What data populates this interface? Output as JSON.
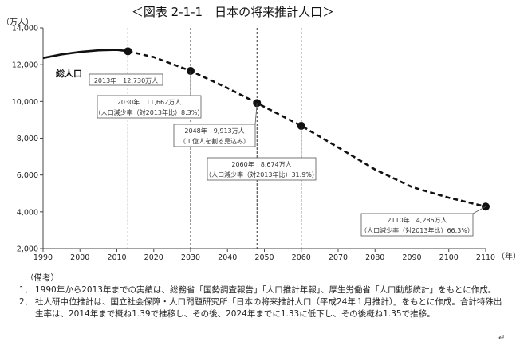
{
  "chart_data": {
    "type": "line",
    "title": "＜図表 2-1-1　日本の将来推計人口＞",
    "y_unit_label": "（万人）",
    "x_unit_label": "（年）",
    "xlim": [
      1990,
      2110
    ],
    "ylim": [
      2000,
      14000
    ],
    "x_ticks": [
      1990,
      2000,
      2010,
      2020,
      2030,
      2040,
      2050,
      2060,
      2070,
      2080,
      2090,
      2100,
      2110
    ],
    "y_ticks": [
      2000,
      4000,
      6000,
      8000,
      10000,
      12000,
      14000
    ],
    "y_tick_labels": [
      "2,000",
      "4,000",
      "6,000",
      "8,000",
      "10,000",
      "12,000",
      "14,000"
    ],
    "grid": false,
    "series": [
      {
        "name": "総人口",
        "segment": "実績",
        "style": "solid",
        "x": [
          1990,
          1995,
          2000,
          2005,
          2010,
          2013
        ],
        "y": [
          12361,
          12557,
          12693,
          12777,
          12806,
          12730
        ]
      },
      {
        "name": "総人口",
        "segment": "推計",
        "style": "dashed",
        "x": [
          2013,
          2020,
          2030,
          2040,
          2048,
          2050,
          2060,
          2070,
          2080,
          2090,
          2100,
          2110
        ],
        "y": [
          12730,
          12410,
          11662,
          10728,
          9913,
          9708,
          8674,
          7500,
          6300,
          5350,
          4770,
          4286
        ]
      }
    ],
    "markers": [
      {
        "x": 2013,
        "y": 12730,
        "vline": true
      },
      {
        "x": 2030,
        "y": 11662,
        "vline": true
      },
      {
        "x": 2048,
        "y": 9913,
        "vline": true
      },
      {
        "x": 2060,
        "y": 8674,
        "vline": true
      },
      {
        "x": 2110,
        "y": 4286,
        "vline": false
      }
    ],
    "annotations": [
      {
        "lines": [
          "2013年　12,730万人"
        ]
      },
      {
        "lines": [
          "2030年　11,662万人",
          "（人口減少率（対2013年比）8.3%）"
        ]
      },
      {
        "lines": [
          "2048年　9,913万人",
          "（１億人を割る見込み）"
        ]
      },
      {
        "lines": [
          "2060年　8,674万人",
          "（人口減少率（対2013年比）31.9%）"
        ]
      },
      {
        "lines": [
          "2110年　4,286万人",
          "（人口減少率（対2013年比）66.3%）"
        ]
      }
    ],
    "series_label": "総人口"
  },
  "notes": {
    "header": "（備考）",
    "items": [
      {
        "num": "1．",
        "text": "1990年から2013年までの実績は、総務省「国勢調査報告」「人口推計年報」、厚生労働省「人口動態統計」をもとに作成。"
      },
      {
        "num": "2．",
        "text": "社人研中位推計は、国立社会保障・人口問題研究所「日本の将来推計人口（平成24年１月推計）」をもとに作成。合計特殊出生率は、2014年まで概ね1.39で推移し、その後、2024年までに1.33に低下し、その後概ね1.35で推移。"
      }
    ],
    "return_mark": "↵"
  }
}
